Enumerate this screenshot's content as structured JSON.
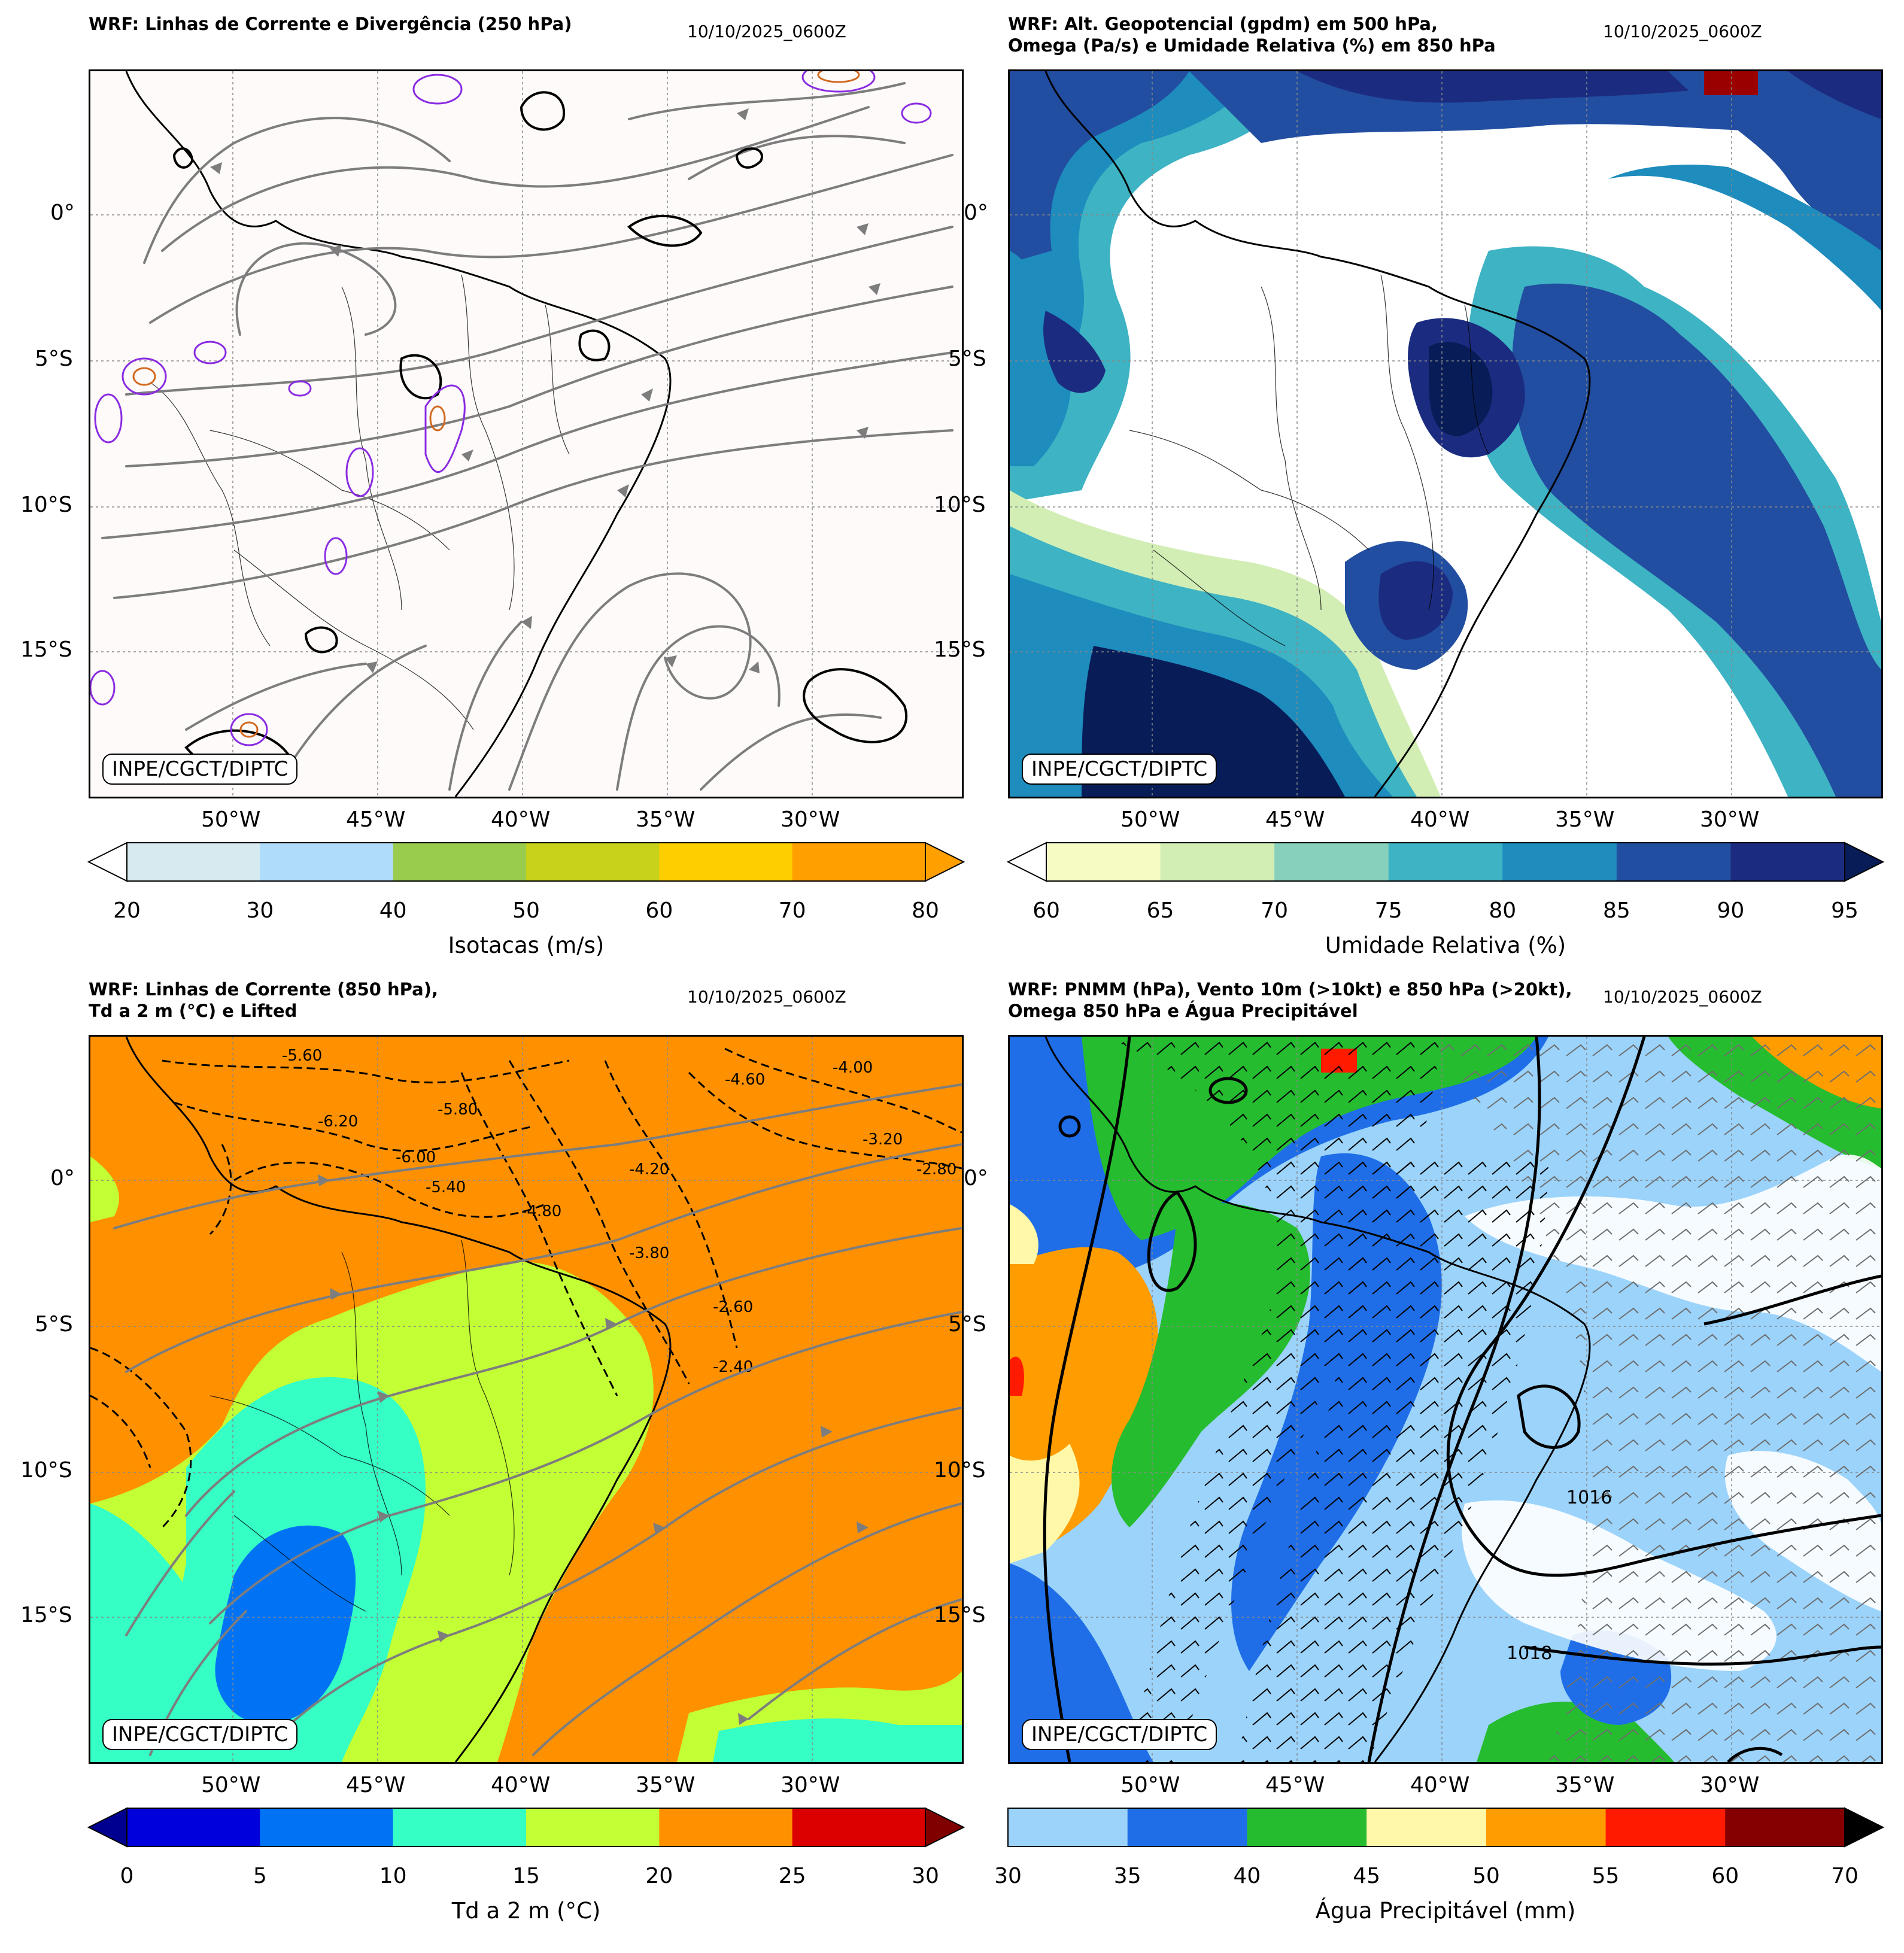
{
  "common": {
    "date": "10/10/2025_0600Z",
    "credit": "INPE/CGCT/DIPTC",
    "lat_labels": [
      "0°",
      "5°S",
      "10°S",
      "15°S"
    ],
    "lon_labels": [
      "50°W",
      "45°W",
      "40°W",
      "35°W",
      "30°W"
    ]
  },
  "panels": [
    {
      "id": "p1",
      "title": "WRF: Linhas de Corrente e Divergência (250 hPa)",
      "colorbar_label": "Isotacas (m/s)",
      "colorbar_ticks": [
        "20",
        "30",
        "40",
        "50",
        "60",
        "70",
        "80"
      ],
      "colorbar_colors": [
        "#d6eaf0",
        "#b0dcfb",
        "#99cc4c",
        "#c8d21a",
        "#ffce00",
        "#ff9f00"
      ],
      "extend_colors": [
        "#ffffff",
        "#ff9f00"
      ]
    },
    {
      "id": "p2",
      "title": "WRF: Alt. Geopotencial (gpdm) em 500 hPa,\nOmega (Pa/s) e Umidade Relativa (%) em 850 hPa",
      "colorbar_label": "Umidade Relativa (%)",
      "colorbar_ticks": [
        "60",
        "65",
        "70",
        "75",
        "80",
        "85",
        "90",
        "95"
      ],
      "colorbar_colors": [
        "#f6fbc4",
        "#d2eeb4",
        "#87d0bc",
        "#3eb3c4",
        "#1e8cbd",
        "#224ea1",
        "#1b2c80"
      ],
      "extend_colors": [
        "#ffffff",
        "#081d58"
      ]
    },
    {
      "id": "p3",
      "title": "WRF: Linhas de Corrente (850 hPa),\nTd a 2 m (°C) e Lifted",
      "colorbar_label": "Td a 2 m (°C)",
      "colorbar_ticks": [
        "0",
        "5",
        "10",
        "15",
        "20",
        "25",
        "30"
      ],
      "colorbar_colors": [
        "#0000dd",
        "#0073f5",
        "#35ffc4",
        "#c3ff35",
        "#ff9100",
        "#dd0000"
      ],
      "extend_colors": [
        "#000090",
        "#800000"
      ],
      "contour_labels": [
        "-5.60",
        "-5.80",
        "-6.20",
        "-6.00",
        "-5.40",
        "-4.80",
        "-4.20",
        "-4.60",
        "-4.00",
        "-3.80",
        "-3.20",
        "-2.80",
        "-2.60",
        "-2.40"
      ]
    },
    {
      "id": "p4",
      "title": "WRF: PNMM (hPa), Vento 10m (>10kt) e 850 hPa (>20kt),\nOmega 850 hPa e Água Precipitável",
      "colorbar_label": "Água Precipitável (mm)",
      "colorbar_ticks": [
        "30",
        "35",
        "40",
        "45",
        "50",
        "55",
        "60",
        "70"
      ],
      "colorbar_colors": [
        "#9bd3fb",
        "#1f6ee8",
        "#26bc2f",
        "#fff8a8",
        "#ff9c00",
        "#ff1a00",
        "#850000"
      ],
      "extend_colors": [
        "#ffffff",
        "#000000"
      ],
      "isobar_labels": [
        "1016",
        "1018"
      ]
    }
  ]
}
